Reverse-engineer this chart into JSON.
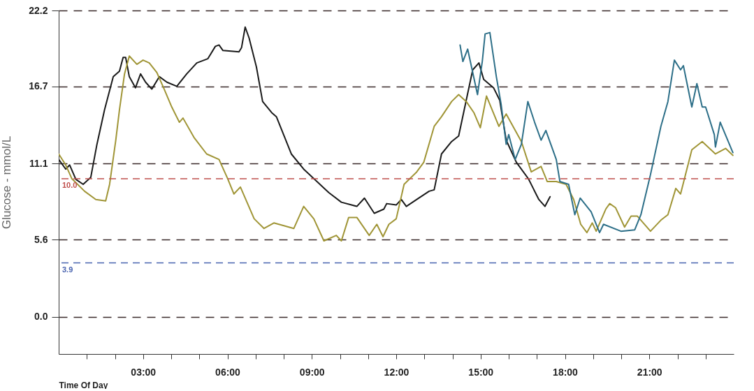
{
  "chart_data": {
    "type": "line",
    "xlabel": "Time Of Day",
    "ylabel": "Glucose - mmol/L",
    "xlim": [
      0,
      24
    ],
    "ylim": [
      -2.7,
      22.2
    ],
    "xticks": [
      {
        "value": 1,
        "label": null
      },
      {
        "value": 2,
        "label": null
      },
      {
        "value": 3,
        "label": "03:00"
      },
      {
        "value": 4,
        "label": null
      },
      {
        "value": 5,
        "label": null
      },
      {
        "value": 6,
        "label": "06:00"
      },
      {
        "value": 7,
        "label": null
      },
      {
        "value": 8,
        "label": null
      },
      {
        "value": 9,
        "label": "09:00"
      },
      {
        "value": 10,
        "label": null
      },
      {
        "value": 11,
        "label": null
      },
      {
        "value": 12,
        "label": "12:00"
      },
      {
        "value": 13,
        "label": null
      },
      {
        "value": 14,
        "label": null
      },
      {
        "value": 15,
        "label": "15:00"
      },
      {
        "value": 16,
        "label": null
      },
      {
        "value": 17,
        "label": null
      },
      {
        "value": 18,
        "label": "18:00"
      },
      {
        "value": 19,
        "label": null
      },
      {
        "value": 20,
        "label": null
      },
      {
        "value": 21,
        "label": "21:00"
      },
      {
        "value": 22,
        "label": null
      },
      {
        "value": 23,
        "label": null
      }
    ],
    "yticks": [
      {
        "value": 0,
        "label": "0.0"
      },
      5.6,
      11.1,
      16.7,
      22.2
    ],
    "grid": "y",
    "line_style": "solid",
    "marker": "none",
    "ref_lines": [
      {
        "axis": "y",
        "value": 10,
        "label": "10.0",
        "color": "#c0504d",
        "line_style": "dashed"
      },
      {
        "axis": "y",
        "value": 3.9,
        "label": "3.9",
        "color": "#4a64b0",
        "line_style": "dashed"
      }
    ],
    "series": [
      {
        "color": "#1a1a1a",
        "x": [
          0,
          0.25,
          0.39,
          0.61,
          0.87,
          1.14,
          1.36,
          1.63,
          1.94,
          2.16,
          2.29,
          2.38,
          2.51,
          2.73,
          2.91,
          3.09,
          3.31,
          3.58,
          3.85,
          4.2,
          4.55,
          4.91,
          5.3,
          5.57,
          5.7,
          5.84,
          6.41,
          6.5,
          6.63,
          6.77,
          7.03,
          7.25,
          7.57,
          7.74,
          8.27,
          8.71,
          9.6,
          10.05,
          10.6,
          10.87,
          11.22,
          11.56,
          11.66,
          12,
          12.18,
          12.36,
          12.73,
          13.17,
          13.35,
          13.61,
          13.97,
          14.22,
          14.49,
          14.72,
          14.94,
          15.11,
          15.46,
          15.68,
          15.91,
          16.27,
          16.7,
          17.07,
          17.29,
          17.47
        ],
        "values": [
          11.4,
          10.7,
          11,
          9.96,
          9.6,
          10.1,
          12.5,
          15,
          17.4,
          17.8,
          18.8,
          18.8,
          17.4,
          16.6,
          17.6,
          17,
          16.5,
          17.4,
          17,
          16.7,
          17.6,
          18.4,
          18.7,
          19.6,
          19.7,
          19.3,
          19.2,
          19.5,
          21,
          20.2,
          18.1,
          15.6,
          14.8,
          14.5,
          11.8,
          10.7,
          9,
          8.3,
          8,
          8.6,
          7.5,
          7.8,
          8.2,
          8.1,
          8.5,
          8,
          8.5,
          9.1,
          9.2,
          11.8,
          12.7,
          13.1,
          15.7,
          17.9,
          18.4,
          17.2,
          16.6,
          15.7,
          12.8,
          11.2,
          10,
          8.5,
          8,
          8.7
        ]
      },
      {
        "color": "#a09536",
        "x": [
          0,
          0.25,
          0.47,
          0.92,
          1.32,
          1.67,
          1.81,
          2.03,
          2.16,
          2.34,
          2.51,
          2.78,
          3,
          3.22,
          3.49,
          3.75,
          4.02,
          4.29,
          4.42,
          4.81,
          5.26,
          5.7,
          6.01,
          6.23,
          6.46,
          6.95,
          7.3,
          7.65,
          8.36,
          8.71,
          9.07,
          9.43,
          9.87,
          10.05,
          10.31,
          10.6,
          11.04,
          11.31,
          11.53,
          11.74,
          12,
          12.28,
          12.73,
          12.98,
          13.35,
          13.61,
          13.97,
          14.22,
          14.49,
          14.76,
          14.99,
          15.21,
          15.65,
          15.91,
          16.45,
          16.8,
          17.15,
          17.37,
          17.69,
          18.04,
          18.31,
          18.56,
          18.78,
          18.97,
          19.11,
          19.45,
          19.59,
          19.8,
          20.12,
          20.35,
          20.57,
          21.04,
          21.41,
          21.66,
          21.94,
          22.11,
          22.51,
          22.88,
          23.35,
          23.71,
          23.97
        ],
        "values": [
          11.8,
          11,
          10,
          9.1,
          8.5,
          8.4,
          9.6,
          12.8,
          15,
          17.6,
          18.9,
          18.3,
          18.6,
          18.4,
          17.7,
          16.5,
          15.2,
          14.1,
          14.4,
          13,
          11.8,
          11.4,
          10,
          8.9,
          9.4,
          7.1,
          6.4,
          6.8,
          6.4,
          8,
          7.1,
          5.5,
          5.9,
          5.5,
          7.2,
          7.2,
          5.9,
          6.7,
          5.8,
          6.7,
          7.1,
          9.6,
          10.5,
          11.2,
          13.8,
          14.5,
          15.6,
          16.1,
          15.6,
          14.8,
          13.7,
          16,
          13.8,
          14.7,
          12.7,
          10.5,
          10.9,
          9.8,
          9.8,
          9.6,
          8.5,
          6.7,
          6.1,
          6.8,
          6.2,
          7.8,
          8.2,
          7.9,
          6.5,
          7.3,
          7.3,
          6.2,
          7,
          7.4,
          9.3,
          8.9,
          12.1,
          12.7,
          11.8,
          12.2,
          11.7
        ]
      },
      {
        "color": "#2d6f88",
        "x": [
          14.27,
          14.37,
          14.54,
          14.89,
          15.06,
          15.16,
          15.33,
          15.56,
          15.73,
          15.91,
          16,
          16.23,
          16.45,
          16.68,
          16.92,
          17.15,
          17.32,
          17.69,
          17.82,
          18.13,
          18.35,
          18.54,
          18.93,
          19.23,
          19.37,
          19.99,
          20.48,
          20.7,
          21.04,
          21.41,
          21.66,
          21.89,
          22.11,
          22.21,
          22.51,
          22.69,
          22.88,
          23,
          23.31,
          23.35,
          23.52,
          23.97
        ],
        "values": [
          19.7,
          18.5,
          19.4,
          16.1,
          18.5,
          20.5,
          20.6,
          17.4,
          15.4,
          12.5,
          13.2,
          11.4,
          12.5,
          15.6,
          14.1,
          12.8,
          13.5,
          11.4,
          9.8,
          9.6,
          7.4,
          8.6,
          7.6,
          6.1,
          6.7,
          6.2,
          6.3,
          7.4,
          10.3,
          13.8,
          15.6,
          18.6,
          17.9,
          18.2,
          15.2,
          16.9,
          15.2,
          15.2,
          13.2,
          12.3,
          14.1,
          11.9
        ]
      }
    ]
  }
}
